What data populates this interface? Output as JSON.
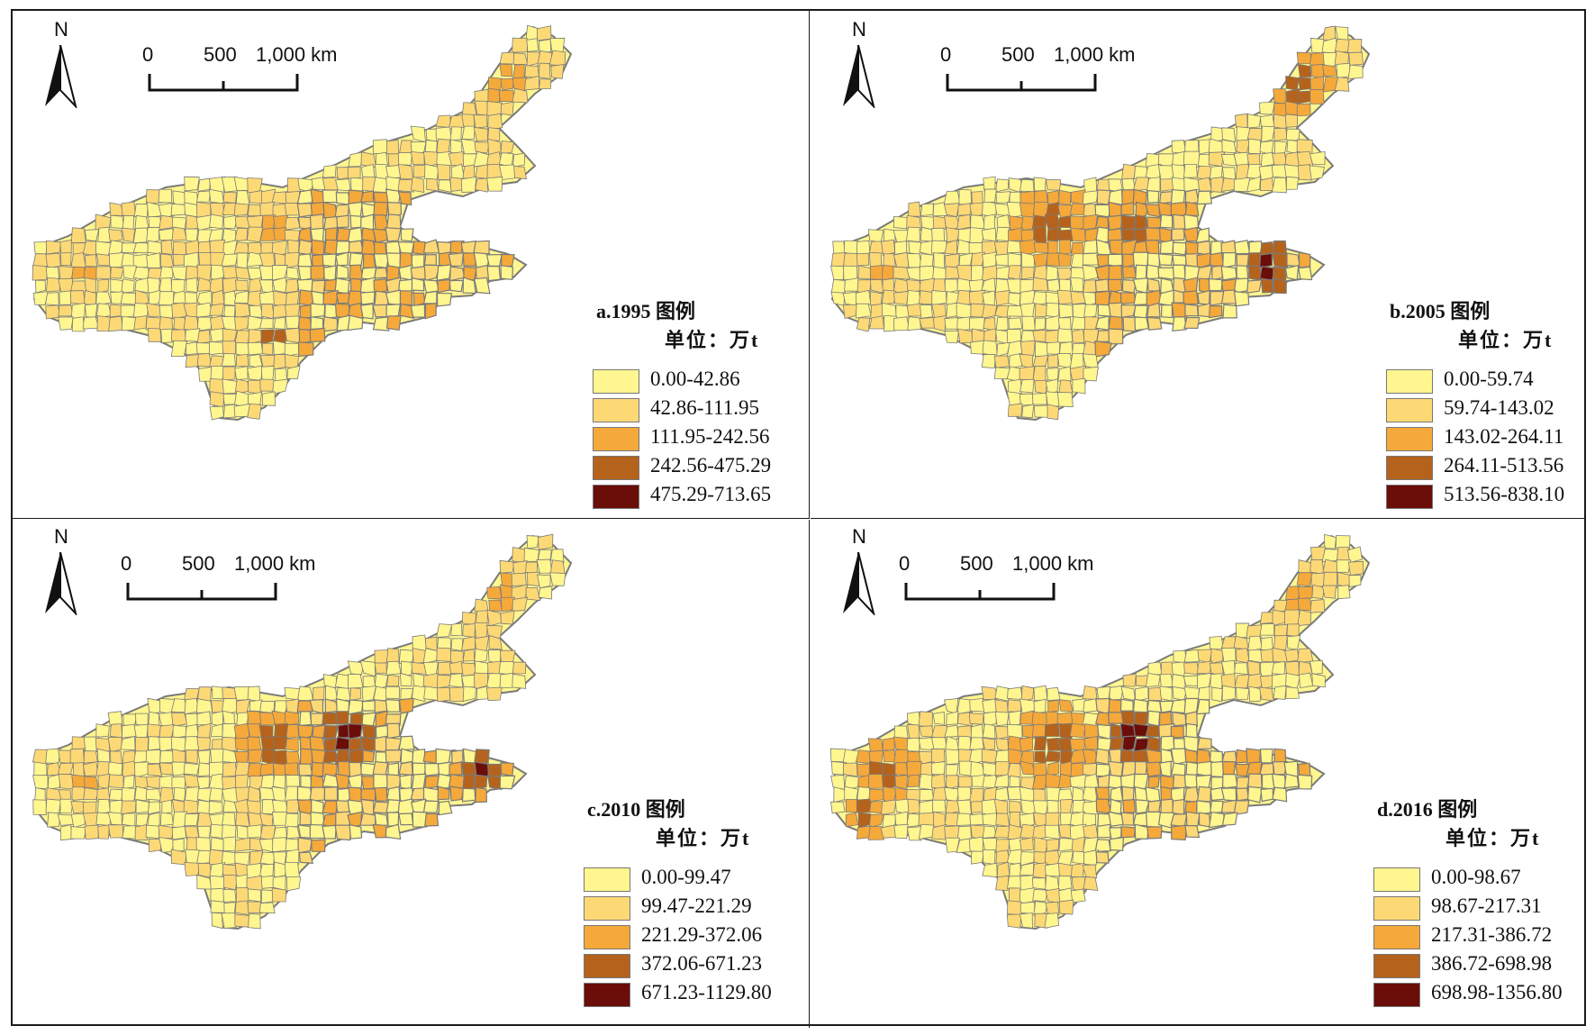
{
  "figure": {
    "colors": {
      "boundary": "#7a7a7a",
      "classes": [
        "#FFF68F",
        "#FDD976",
        "#F5A93A",
        "#B5631C",
        "#6B0D08"
      ]
    },
    "north_letter": "N",
    "scale_labels": [
      "0",
      "500",
      "1,000 km"
    ],
    "panels": [
      {
        "id": "a",
        "title": "a.1995 图例",
        "unit": "单位：万t",
        "legend": [
          "0.00-42.86",
          "42.86-111.95",
          "111.95-242.56",
          "242.56-475.29",
          "475.29-713.65"
        ],
        "dominant_class": 0
      },
      {
        "id": "b",
        "title": "b.2005 图例",
        "unit": "单位：万t",
        "legend": [
          "0.00-59.74",
          "59.74-143.02",
          "143.02-264.11",
          "264.11-513.56",
          "513.56-838.10"
        ],
        "dominant_class": 0
      },
      {
        "id": "c",
        "title": "c.2010 图例",
        "unit": "单位：万t",
        "legend": [
          "0.00-99.47",
          "99.47-221.29",
          "221.29-372.06",
          "372.06-671.23",
          "671.23-1129.80"
        ],
        "dominant_class": 0
      },
      {
        "id": "d",
        "title": "d.2016 图例",
        "unit": "单位：万t",
        "legend": [
          "0.00-98.67",
          "98.67-217.31",
          "217.31-386.72",
          "386.72-698.98",
          "698.98-1356.80"
        ],
        "dominant_class": 0
      }
    ]
  }
}
